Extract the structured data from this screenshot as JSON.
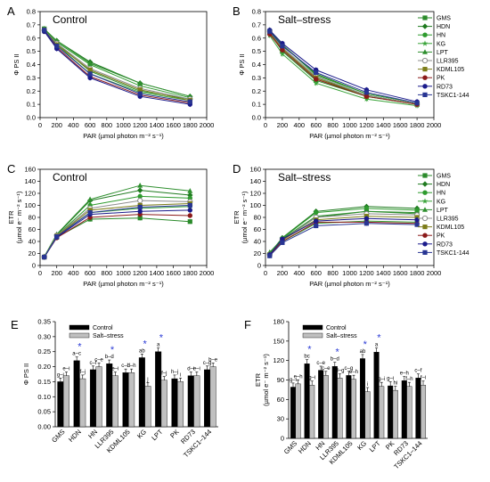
{
  "colors": {
    "GMS": "#2a8a2a",
    "HDN": "#1f7a1f",
    "HN": "#2e9b2e",
    "KG": "#3aa43a",
    "LPT": "#2f8f2f",
    "LLR395": "#8c8c8c",
    "KDML105": "#7d7d1a",
    "PK": "#8b1a1a",
    "RD73": "#1a1a8b",
    "TSKC1-144": "#283593",
    "control": "#000000",
    "salt": "#c0c0c0",
    "star": "#2b3bd6"
  },
  "chart_data": [
    {
      "id": "A",
      "type": "line",
      "panel_label": "A",
      "title": "Control",
      "xlabel": "PAR (µmol photon m⁻² s⁻¹)",
      "ylabel": "Φ PS II",
      "xlim": [
        0,
        2000
      ],
      "ylim": [
        0,
        0.8
      ],
      "xticks": [
        "0",
        "200",
        "400",
        "600",
        "800",
        "1000",
        "1200",
        "1400",
        "1600",
        "1800",
        "2000"
      ],
      "yticks": [
        "0.0",
        "0.1",
        "0.2",
        "0.3",
        "0.4",
        "0.5",
        "0.6",
        "0.7",
        "0.8"
      ],
      "x": [
        50,
        200,
        600,
        1200,
        1800
      ],
      "series": [
        {
          "name": "GMS",
          "marker": "square",
          "values": [
            0.67,
            0.56,
            0.35,
            0.2,
            0.14
          ]
        },
        {
          "name": "HDN",
          "marker": "diamond",
          "values": [
            0.66,
            0.58,
            0.42,
            0.26,
            0.16
          ]
        },
        {
          "name": "HN",
          "marker": "circle",
          "values": [
            0.66,
            0.57,
            0.4,
            0.24,
            0.15
          ]
        },
        {
          "name": "KG",
          "marker": "star",
          "values": [
            0.65,
            0.55,
            0.33,
            0.19,
            0.13
          ]
        },
        {
          "name": "LPT",
          "marker": "triangle",
          "values": [
            0.67,
            0.58,
            0.41,
            0.26,
            0.16
          ]
        },
        {
          "name": "LLR395",
          "marker": "circle-open",
          "values": [
            0.66,
            0.56,
            0.37,
            0.22,
            0.14
          ]
        },
        {
          "name": "KDML105",
          "marker": "square",
          "values": [
            0.66,
            0.55,
            0.36,
            0.21,
            0.13
          ]
        },
        {
          "name": "PK",
          "marker": "circle",
          "values": [
            0.65,
            0.53,
            0.31,
            0.17,
            0.11
          ]
        },
        {
          "name": "RD73",
          "marker": "circle",
          "values": [
            0.65,
            0.52,
            0.3,
            0.16,
            0.1
          ]
        },
        {
          "name": "TSKC1-144",
          "marker": "square",
          "values": [
            0.66,
            0.54,
            0.33,
            0.18,
            0.12
          ]
        }
      ]
    },
    {
      "id": "B",
      "type": "line",
      "panel_label": "B",
      "title": "Salt–stress",
      "xlabel": "PAR (µmol photon m⁻² s⁻¹)",
      "ylabel": "Φ PS II",
      "xlim": [
        0,
        2000
      ],
      "ylim": [
        0,
        0.8
      ],
      "xticks": [
        "0",
        "200",
        "400",
        "600",
        "800",
        "1000",
        "1200",
        "1400",
        "1600",
        "1800",
        "2000"
      ],
      "yticks": [
        "0.0",
        "0.1",
        "0.2",
        "0.3",
        "0.4",
        "0.5",
        "0.6",
        "0.7",
        "0.8"
      ],
      "x": [
        50,
        200,
        600,
        1200,
        1800
      ],
      "series": [
        {
          "name": "GMS",
          "marker": "square",
          "values": [
            0.64,
            0.5,
            0.28,
            0.16,
            0.1
          ]
        },
        {
          "name": "HDN",
          "marker": "diamond",
          "values": [
            0.66,
            0.55,
            0.33,
            0.18,
            0.11
          ]
        },
        {
          "name": "HN",
          "marker": "circle",
          "values": [
            0.65,
            0.55,
            0.32,
            0.18,
            0.11
          ]
        },
        {
          "name": "KG",
          "marker": "star",
          "values": [
            0.62,
            0.48,
            0.26,
            0.14,
            0.09
          ]
        },
        {
          "name": "LPT",
          "marker": "triangle",
          "values": [
            0.64,
            0.52,
            0.3,
            0.17,
            0.1
          ]
        },
        {
          "name": "LLR395",
          "marker": "circle-open",
          "values": [
            0.65,
            0.53,
            0.31,
            0.17,
            0.1
          ]
        },
        {
          "name": "KDML105",
          "marker": "square",
          "values": [
            0.64,
            0.52,
            0.3,
            0.16,
            0.1
          ]
        },
        {
          "name": "PK",
          "marker": "circle",
          "values": [
            0.63,
            0.51,
            0.29,
            0.16,
            0.1
          ]
        },
        {
          "name": "RD73",
          "marker": "circle",
          "values": [
            0.66,
            0.56,
            0.36,
            0.21,
            0.12
          ]
        },
        {
          "name": "TSKC1-144",
          "marker": "square",
          "values": [
            0.65,
            0.54,
            0.34,
            0.19,
            0.11
          ]
        }
      ],
      "legend": [
        "GMS",
        "HDN",
        "HN",
        "KG",
        "LPT",
        "LLR395",
        "KDML105",
        "PK",
        "RD73",
        "TSKC1-144"
      ]
    },
    {
      "id": "C",
      "type": "line",
      "panel_label": "C",
      "title": "Control",
      "xlabel": "PAR (µmol photon m⁻² s⁻¹)",
      "ylabel_lines": [
        "ETR",
        "(µmol e⁻ m⁻² s⁻¹)"
      ],
      "xlim": [
        0,
        2000
      ],
      "ylim": [
        0,
        160
      ],
      "xticks": [
        "0",
        "200",
        "400",
        "600",
        "800",
        "1000",
        "1200",
        "1400",
        "1600",
        "1800",
        "2000"
      ],
      "yticks": [
        "0",
        "20",
        "40",
        "60",
        "80",
        "100",
        "120",
        "140",
        "160"
      ],
      "x": [
        50,
        200,
        600,
        1200,
        1800
      ],
      "series": [
        {
          "name": "GMS",
          "marker": "square",
          "values": [
            14,
            47,
            77,
            79,
            73
          ]
        },
        {
          "name": "HDN",
          "marker": "diamond",
          "values": [
            14,
            51,
            108,
            125,
            117
          ]
        },
        {
          "name": "HN",
          "marker": "circle",
          "values": [
            14,
            50,
            100,
            115,
            112
          ]
        },
        {
          "name": "KG",
          "marker": "star",
          "values": [
            14,
            49,
            88,
            95,
            98
          ]
        },
        {
          "name": "LPT",
          "marker": "triangle",
          "values": [
            15,
            52,
            110,
            133,
            124
          ]
        },
        {
          "name": "LLR395",
          "marker": "circle-open",
          "values": [
            14,
            50,
            95,
            108,
            106
          ]
        },
        {
          "name": "KDML105",
          "marker": "square",
          "values": [
            14,
            49,
            92,
            100,
            103
          ]
        },
        {
          "name": "PK",
          "marker": "circle",
          "values": [
            14,
            46,
            80,
            85,
            83
          ]
        },
        {
          "name": "RD73",
          "marker": "circle",
          "values": [
            14,
            47,
            85,
            90,
            92
          ]
        },
        {
          "name": "TSKC1-144",
          "marker": "square",
          "values": [
            14,
            48,
            88,
            97,
            100
          ]
        }
      ]
    },
    {
      "id": "D",
      "type": "line",
      "panel_label": "D",
      "title": "Salt–stress",
      "xlabel": "PAR (µmol photon m⁻² s⁻¹)",
      "ylabel_lines": [
        "ETR",
        "(µmol e⁻ m⁻² s⁻¹)"
      ],
      "xlim": [
        0,
        2000
      ],
      "ylim": [
        0,
        160
      ],
      "xticks": [
        "0",
        "200",
        "400",
        "600",
        "800",
        "1000",
        "1200",
        "1400",
        "1600",
        "1800",
        "2000"
      ],
      "yticks": [
        "0",
        "20",
        "40",
        "60",
        "80",
        "100",
        "120",
        "140",
        "160"
      ],
      "x": [
        50,
        200,
        600,
        1200,
        1800
      ],
      "series": [
        {
          "name": "GMS",
          "marker": "square",
          "values": [
            18,
            42,
            80,
            90,
            88
          ]
        },
        {
          "name": "HDN",
          "marker": "diamond",
          "values": [
            20,
            46,
            90,
            98,
            95
          ]
        },
        {
          "name": "HN",
          "marker": "circle",
          "values": [
            19,
            45,
            88,
            95,
            92
          ]
        },
        {
          "name": "KG",
          "marker": "star",
          "values": [
            17,
            40,
            70,
            74,
            72
          ]
        },
        {
          "name": "LPT",
          "marker": "triangle",
          "values": [
            22,
            44,
            82,
            90,
            86
          ]
        },
        {
          "name": "LLR395",
          "marker": "circle-open",
          "values": [
            18,
            43,
            80,
            86,
            84
          ]
        },
        {
          "name": "KDML105",
          "marker": "square",
          "values": [
            18,
            42,
            76,
            82,
            80
          ]
        },
        {
          "name": "PK",
          "marker": "circle",
          "values": [
            17,
            40,
            72,
            72,
            70
          ]
        },
        {
          "name": "RD73",
          "marker": "circle",
          "values": [
            18,
            44,
            74,
            78,
            76
          ]
        },
        {
          "name": "TSKC1-144",
          "marker": "square",
          "values": [
            16,
            38,
            66,
            70,
            68
          ]
        }
      ],
      "legend": [
        "GMS",
        "HDN",
        "HN",
        "KG",
        "LPT",
        "LLR395",
        "KDML105",
        "PK",
        "RD73",
        "TSKC1-144"
      ]
    },
    {
      "id": "E",
      "type": "bar",
      "panel_label": "E",
      "ylabel": "Φ PS II",
      "ylim": [
        0,
        0.35
      ],
      "yticks": [
        "0.00",
        "0.05",
        "0.10",
        "0.15",
        "0.20",
        "0.25",
        "0.30",
        "0.35"
      ],
      "categories": [
        "GMS",
        "HDN",
        "HN",
        "LLR395",
        "KDML105",
        "KG",
        "LPT",
        "PK",
        "RD73",
        "TSKC1–144"
      ],
      "series": [
        {
          "name": "Control",
          "values": [
            0.15,
            0.22,
            0.19,
            0.21,
            0.18,
            0.23,
            0.25,
            0.16,
            0.17,
            0.19
          ]
        },
        {
          "name": "Salt–stress",
          "values": [
            0.17,
            0.16,
            0.2,
            0.17,
            0.18,
            0.135,
            0.155,
            0.15,
            0.17,
            0.2
          ]
        }
      ],
      "letters": {
        "control": [
          "g–j",
          "a–c",
          "c–f",
          "b–d",
          "c–h",
          "ab",
          "a",
          "h–j",
          "d–i",
          "c–g"
        ],
        "salt": [
          "e–i",
          "f–j",
          "c–e",
          "e–i",
          "d–h",
          "j",
          "f–j",
          "i",
          "e–i",
          "b–e"
        ]
      },
      "significant": [
        1,
        3,
        5,
        6
      ],
      "legend": [
        "Control",
        "Salt–stress"
      ]
    },
    {
      "id": "F",
      "type": "bar",
      "panel_label": "F",
      "ylabel_lines": [
        "ETR",
        "(µmol e⁻ m⁻² s⁻¹)"
      ],
      "ylim": [
        0,
        180
      ],
      "yticks": [
        "0",
        "30",
        "60",
        "90",
        "120",
        "150",
        "180"
      ],
      "categories": [
        "GMS",
        "HDN",
        "HN",
        "LLR395",
        "KDML105",
        "KG",
        "LPT",
        "PK",
        "RD73",
        "TSKC1–144"
      ],
      "series": [
        {
          "name": "Control",
          "values": [
            79,
            115,
            105,
            111,
            97,
            123,
            133,
            81,
            89,
            93
          ]
        },
        {
          "name": "Salt–stress",
          "values": [
            84,
            82,
            97,
            93,
            91,
            72,
            80,
            74,
            80,
            82
          ]
        }
      ],
      "letters": {
        "control": [
          "g–i",
          "bc",
          "c–e",
          "b–d",
          "c–g",
          "ab",
          "a",
          "g–i",
          "e–h",
          "c–f"
        ],
        "salt": [
          "e–h",
          "g–i",
          "c–e",
          "d–g",
          "e–h",
          "i",
          "g–i",
          "hi",
          "f–h",
          "f–i"
        ]
      },
      "significant": [
        1,
        3,
        5,
        6
      ],
      "legend": [
        "Control",
        "Salt–stress"
      ]
    }
  ]
}
